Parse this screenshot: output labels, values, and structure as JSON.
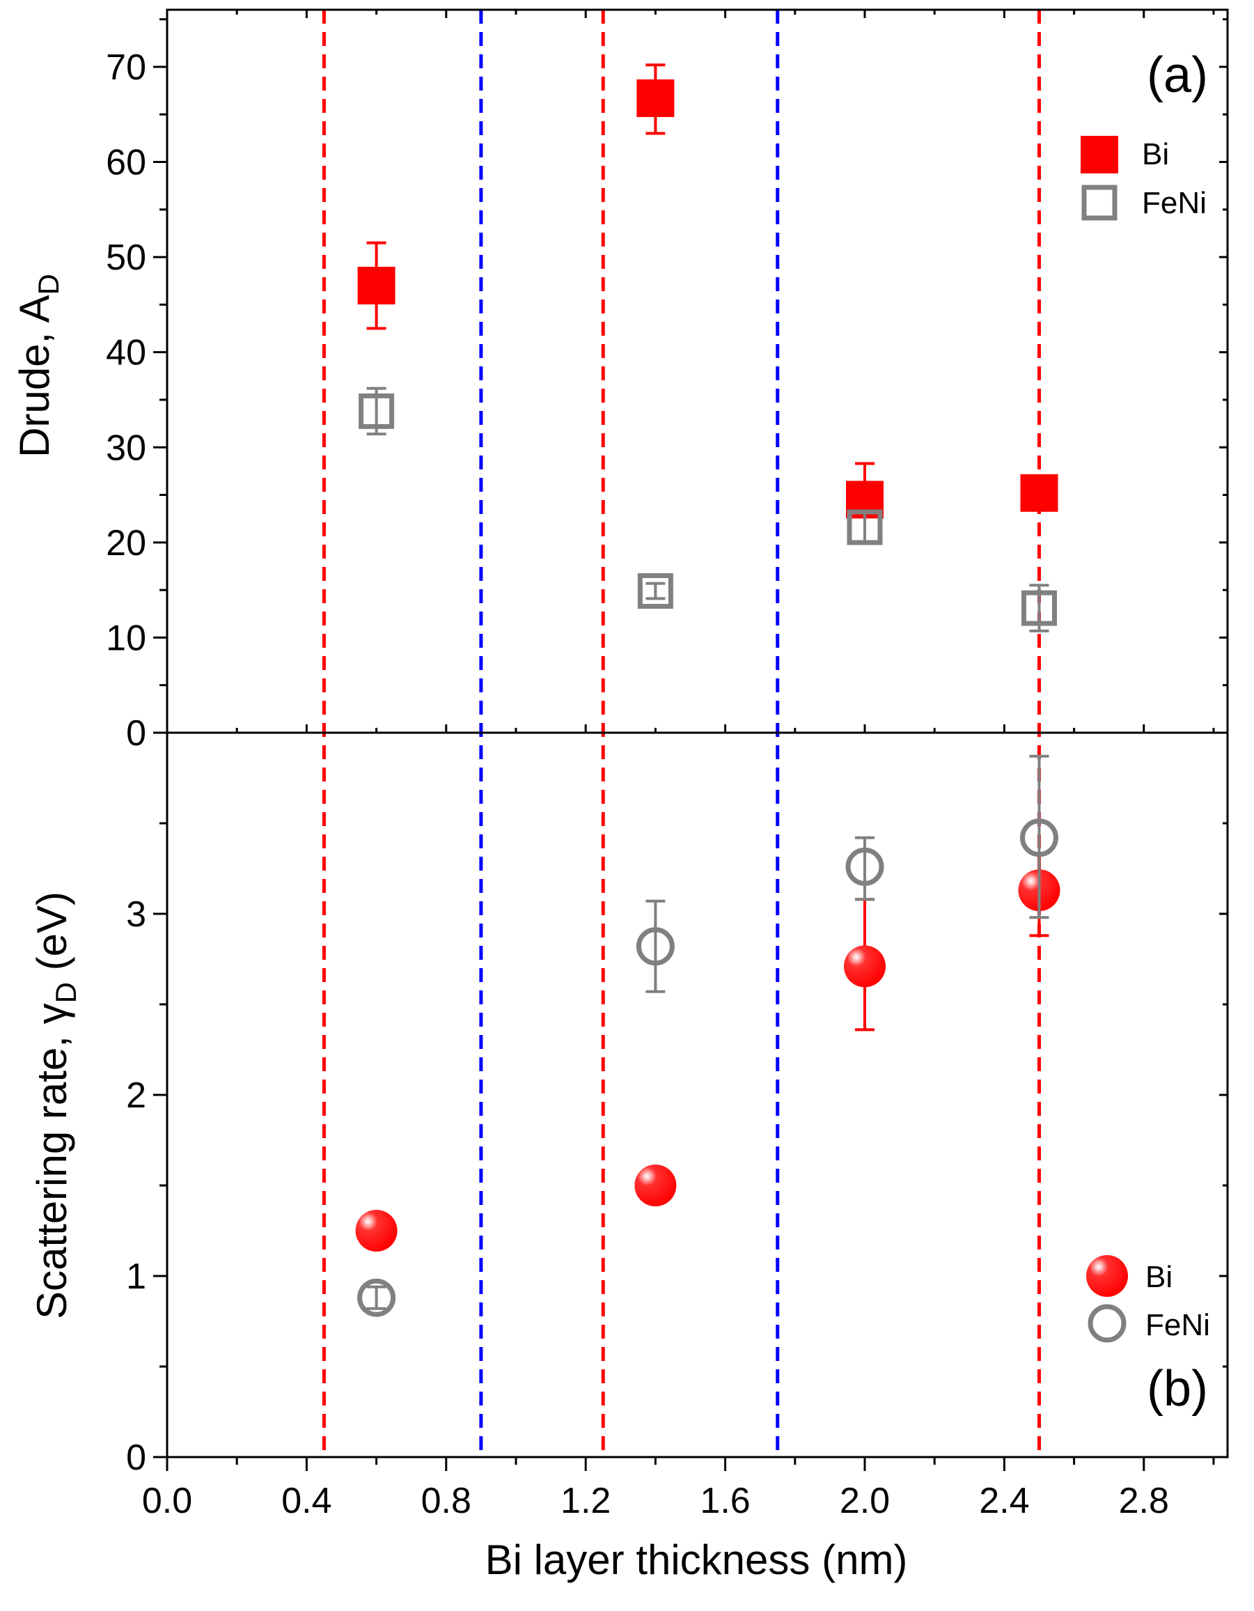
{
  "chart_data": [
    {
      "type": "scatter",
      "panel_label": "(a)",
      "ylabel": "Drude, A",
      "ylabel_sub": "D",
      "xlim": [
        0.0,
        3.04
      ],
      "ylim": [
        0,
        76
      ],
      "yticks": [
        0,
        10,
        20,
        30,
        40,
        50,
        60,
        70
      ],
      "yminor_step": 5,
      "grid": false,
      "legend_position": "top-right",
      "series": [
        {
          "name": "Bi",
          "marker": "filled-square",
          "color": "#ff0000",
          "x": [
            0.6,
            1.4,
            2.0,
            2.5
          ],
          "y": [
            47,
            66.7,
            24.5,
            25.2
          ],
          "err_low": [
            4.5,
            3.7,
            0,
            0
          ],
          "err_high": [
            4.5,
            3.5,
            3.8,
            0
          ]
        },
        {
          "name": "FeNi",
          "marker": "open-square",
          "color": "#808080",
          "x": [
            0.6,
            1.4,
            2.0,
            2.5
          ],
          "y": [
            33.8,
            14.9,
            21.6,
            13.1
          ],
          "err_low": [
            2.4,
            0.8,
            1.5,
            2.4
          ],
          "err_high": [
            2.4,
            0.8,
            1.5,
            2.4
          ]
        }
      ]
    },
    {
      "type": "scatter",
      "panel_label": "(b)",
      "ylabel": "Scattering rate,  γ",
      "ylabel_sub": "D",
      "ylabel_suffix": " (eV)",
      "xlabel": "Bi layer thickness (nm)",
      "xlim": [
        0.0,
        3.04
      ],
      "xticks": [
        0.0,
        0.4,
        0.8,
        1.2,
        1.6,
        2.0,
        2.4,
        2.8
      ],
      "xtick_labels": [
        "0.0",
        "0.4",
        "0.8",
        "1.2",
        "1.6",
        "2.0",
        "2.4",
        "2.8"
      ],
      "xminor_step": 0.2,
      "ylim": [
        0,
        4.0
      ],
      "yticks": [
        0,
        1,
        2,
        3
      ],
      "yminor_step": 0.5,
      "grid": false,
      "legend_position": "bottom-right",
      "series": [
        {
          "name": "Bi",
          "marker": "filled-sphere",
          "color": "#ff0000",
          "x": [
            0.6,
            1.4,
            2.0,
            2.5
          ],
          "y": [
            1.25,
            1.5,
            2.71,
            3.13
          ],
          "err_low": [
            0,
            0,
            0.35,
            0.25
          ],
          "err_high": [
            0,
            0,
            0.37,
            0
          ]
        },
        {
          "name": "FeNi",
          "marker": "open-circle",
          "color": "#808080",
          "x": [
            0.6,
            1.4,
            2.0,
            2.5
          ],
          "y": [
            0.88,
            2.82,
            3.26,
            3.42
          ],
          "err_low": [
            0.06,
            0.25,
            0.18,
            0.44
          ],
          "err_high": [
            0.06,
            0.25,
            0.16,
            0.45
          ]
        }
      ]
    }
  ],
  "vertical_lines": [
    {
      "x": 0.45,
      "color": "#ff0000"
    },
    {
      "x": 0.9,
      "color": "#0000ff"
    },
    {
      "x": 1.25,
      "color": "#ff0000"
    },
    {
      "x": 1.75,
      "color": "#0000ff"
    },
    {
      "x": 2.5,
      "color": "#ff0000"
    }
  ]
}
